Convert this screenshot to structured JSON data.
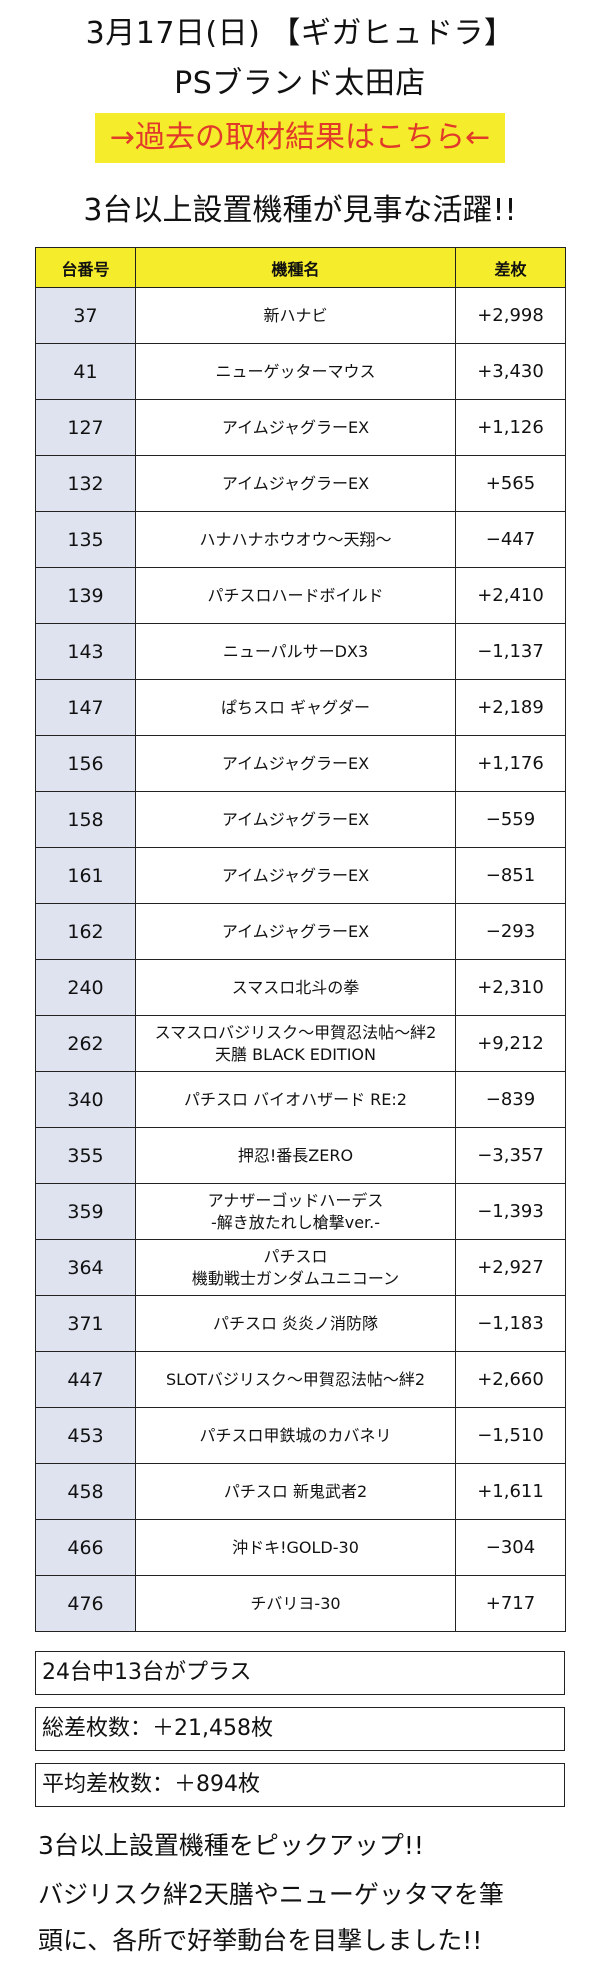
{
  "header": {
    "title_line1": "3月17日(日) 【ギガヒュドラ】",
    "title_line2": "PSブランド太田店",
    "link_banner": "→過去の取材結果はこちら←",
    "subtitle": "3台以上設置機種が見事な活躍!!"
  },
  "colors": {
    "header_bg": "#f5ec2b",
    "banner_text": "#e23a2a",
    "number_cell_bg": "#dfe3f0"
  },
  "table": {
    "headers": [
      "台番号",
      "機種名",
      "差枚"
    ],
    "rows": [
      {
        "number": "37",
        "name": [
          "新ハナビ"
        ],
        "diff": "+2,998"
      },
      {
        "number": "41",
        "name": [
          "ニューゲッターマウス"
        ],
        "diff": "+3,430"
      },
      {
        "number": "127",
        "name": [
          "アイムジャグラーEX"
        ],
        "diff": "+1,126"
      },
      {
        "number": "132",
        "name": [
          "アイムジャグラーEX"
        ],
        "diff": "+565"
      },
      {
        "number": "135",
        "name": [
          "ハナハナホウオウ～天翔～"
        ],
        "diff": "−447"
      },
      {
        "number": "139",
        "name": [
          "パチスロハードボイルド"
        ],
        "diff": "+2,410"
      },
      {
        "number": "143",
        "name": [
          "ニューパルサーDX3"
        ],
        "diff": "−1,137"
      },
      {
        "number": "147",
        "name": [
          "ぱちスロ ギャグダー"
        ],
        "diff": "+2,189"
      },
      {
        "number": "156",
        "name": [
          "アイムジャグラーEX"
        ],
        "diff": "+1,176"
      },
      {
        "number": "158",
        "name": [
          "アイムジャグラーEX"
        ],
        "diff": "−559"
      },
      {
        "number": "161",
        "name": [
          "アイムジャグラーEX"
        ],
        "diff": "−851"
      },
      {
        "number": "162",
        "name": [
          "アイムジャグラーEX"
        ],
        "diff": "−293"
      },
      {
        "number": "240",
        "name": [
          "スマスロ北斗の拳"
        ],
        "diff": "+2,310"
      },
      {
        "number": "262",
        "name": [
          "スマスロバジリスク～甲賀忍法帖～絆2",
          "天膳 BLACK EDITION"
        ],
        "diff": "+9,212"
      },
      {
        "number": "340",
        "name": [
          "パチスロ バイオハザード RE:2"
        ],
        "diff": "−839"
      },
      {
        "number": "355",
        "name": [
          "押忍!番長ZERO"
        ],
        "diff": "−3,357"
      },
      {
        "number": "359",
        "name": [
          "アナザーゴッドハーデス",
          "-解き放たれし槍撃ver.-"
        ],
        "diff": "−1,393"
      },
      {
        "number": "364",
        "name": [
          "パチスロ",
          "機動戦士ガンダムユニコーン"
        ],
        "diff": "+2,927"
      },
      {
        "number": "371",
        "name": [
          "パチスロ 炎炎ノ消防隊"
        ],
        "diff": "−1,183"
      },
      {
        "number": "447",
        "name": [
          "SLOTバジリスク～甲賀忍法帖～絆2"
        ],
        "diff": "+2,660"
      },
      {
        "number": "453",
        "name": [
          "パチスロ甲鉄城のカバネリ"
        ],
        "diff": "−1,510"
      },
      {
        "number": "458",
        "name": [
          "パチスロ 新鬼武者2"
        ],
        "diff": "+1,611"
      },
      {
        "number": "466",
        "name": [
          "沖ドキ!GOLD-30"
        ],
        "diff": "−304"
      },
      {
        "number": "476",
        "name": [
          "チバリヨ-30"
        ],
        "diff": "+717"
      }
    ]
  },
  "summary": [
    "24台中13台がプラス",
    "総差枚数：＋21,458枚",
    "平均差枚数：＋894枚"
  ],
  "closing": [
    "3台以上設置機種をピックアップ!!",
    "バジリスク絆2天膳やニューゲッタマを筆",
    "頭に、各所で好挙動台を目撃しました!!"
  ]
}
